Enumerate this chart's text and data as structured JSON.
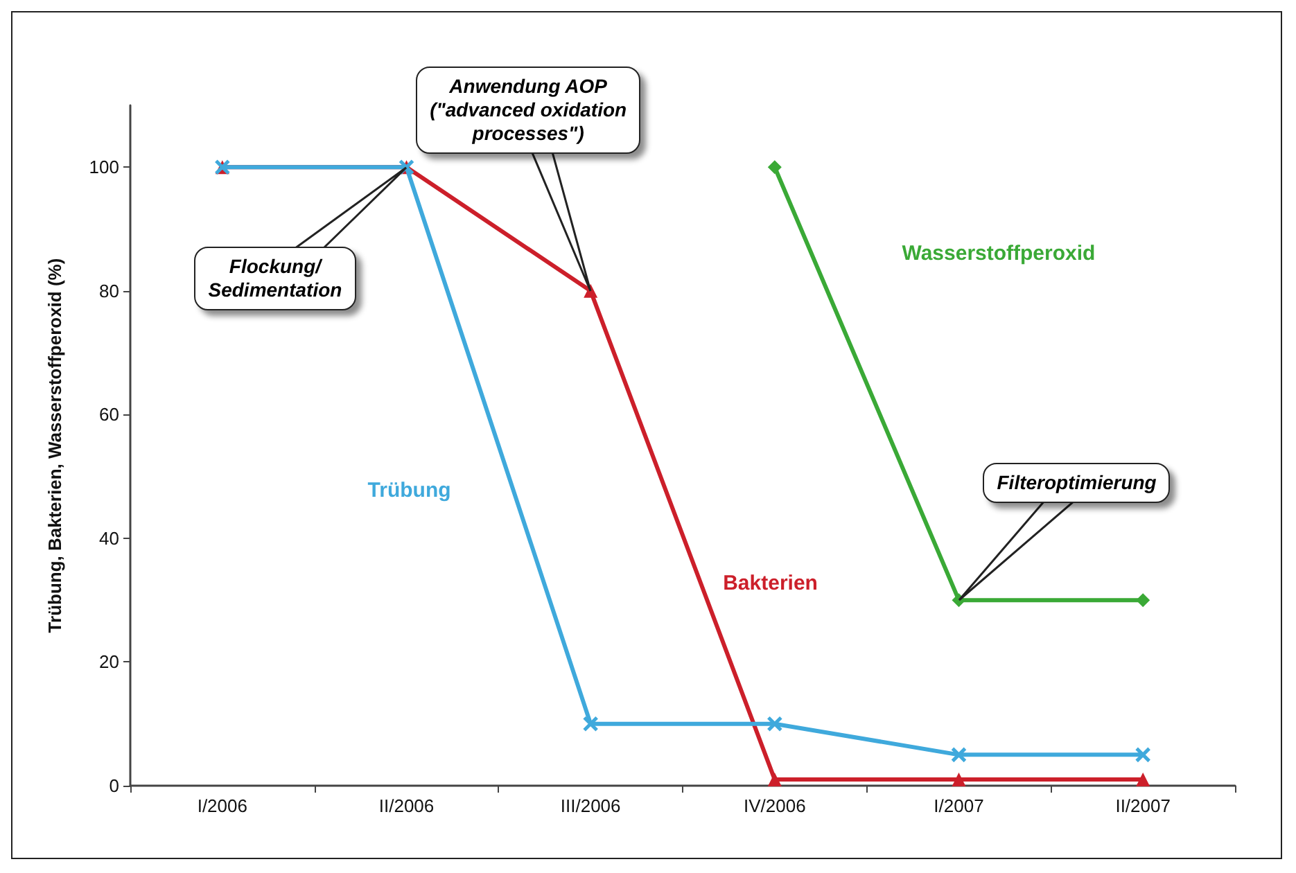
{
  "chart_data": {
    "type": "line",
    "ylabel": "Trübung, Bakterien, Wasserstoffperoxid (%)",
    "categories": [
      "I/2006",
      "II/2006",
      "III/2006",
      "IV/2006",
      "I/2007",
      "II/2007"
    ],
    "series": [
      {
        "name": "Trübung",
        "color": "#3fa9dc",
        "marker": "cross",
        "values": [
          100,
          100,
          10,
          10,
          5,
          5
        ]
      },
      {
        "name": "Bakterien",
        "color": "#cc1f2a",
        "marker": "triangle",
        "values": [
          100,
          100,
          80,
          1,
          1,
          1
        ]
      },
      {
        "name": "Wasserstoffperoxid",
        "color": "#3aa936",
        "marker": "diamond",
        "values": [
          null,
          null,
          null,
          100,
          30,
          30
        ]
      }
    ],
    "ylim": [
      0,
      110
    ],
    "yticks": [
      0,
      20,
      40,
      60,
      80,
      100
    ],
    "grid": false,
    "legend": false,
    "line_style": "solid",
    "annotations": [
      "Flockung/\nSedimentation",
      "Anwendung AOP\n(\"advanced oxidation\nprocesses\")",
      "Filteroptimierung"
    ]
  }
}
